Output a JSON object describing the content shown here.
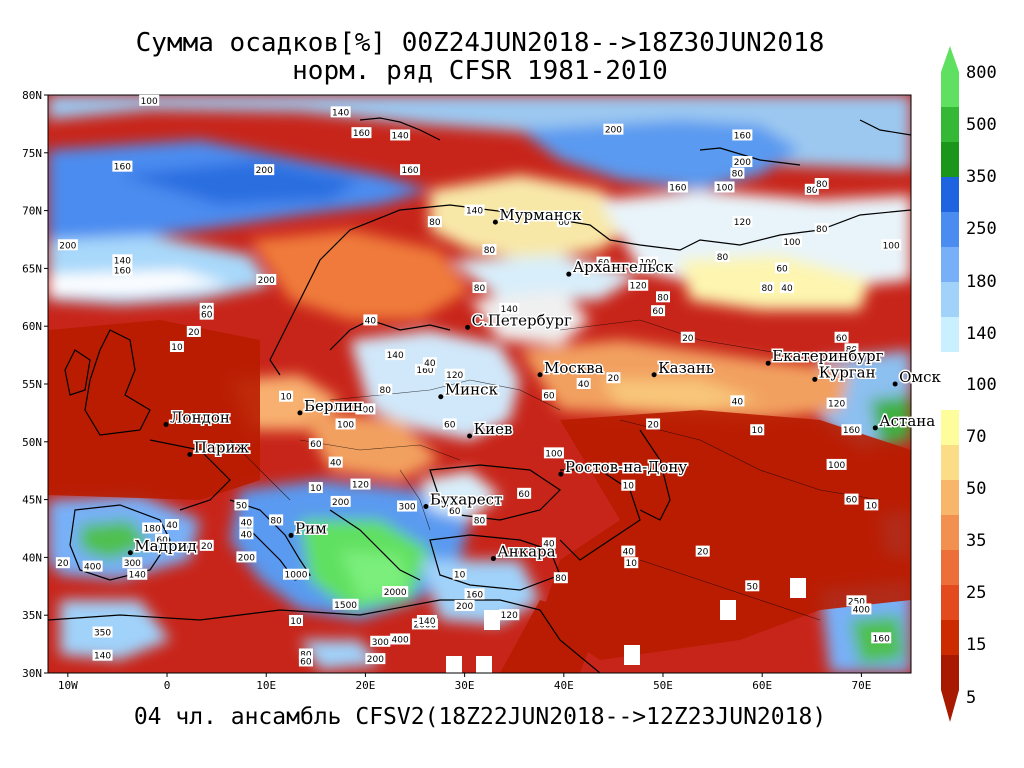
{
  "title_line1": "Сумма осадков[%] 00Z24JUN2018-->18Z30JUN2018",
  "title_line2": "норм. ряд CFSR 1981-2010",
  "footer": "04 чл. ансамбль CFSV2(18Z22JUN2018-->12Z23JUN2018)",
  "lat_ticks": [
    "80N",
    "75N",
    "70N",
    "65N",
    "60N",
    "55N",
    "50N",
    "45N",
    "40N",
    "35N",
    "30N"
  ],
  "lon_ticks": [
    "10W",
    "0",
    "10E",
    "20E",
    "30E",
    "40E",
    "50E",
    "60E",
    "70E"
  ],
  "cities": [
    {
      "name": "Мурманск",
      "lon": 33.1,
      "lat": 69.0
    },
    {
      "name": "Архангельск",
      "lon": 40.5,
      "lat": 64.5
    },
    {
      "name": "С.Петербург",
      "lon": 30.3,
      "lat": 59.9
    },
    {
      "name": "Москва",
      "lon": 37.6,
      "lat": 55.8
    },
    {
      "name": "Казань",
      "lon": 49.1,
      "lat": 55.8
    },
    {
      "name": "Екатеринбург",
      "lon": 60.6,
      "lat": 56.8
    },
    {
      "name": "Курган",
      "lon": 65.3,
      "lat": 55.4
    },
    {
      "name": "Омск",
      "lon": 73.4,
      "lat": 55.0
    },
    {
      "name": "Астана",
      "lon": 71.4,
      "lat": 51.2
    },
    {
      "name": "Минск",
      "lon": 27.6,
      "lat": 53.9
    },
    {
      "name": "Берлин",
      "lon": 13.4,
      "lat": 52.5
    },
    {
      "name": "Лондон",
      "lon": -0.1,
      "lat": 51.5
    },
    {
      "name": "Париж",
      "lon": 2.3,
      "lat": 48.9
    },
    {
      "name": "Киев",
      "lon": 30.5,
      "lat": 50.5
    },
    {
      "name": "Ростов-на-Дону",
      "lon": 39.7,
      "lat": 47.2
    },
    {
      "name": "Бухарест",
      "lon": 26.1,
      "lat": 44.4
    },
    {
      "name": "Рим",
      "lon": 12.5,
      "lat": 41.9
    },
    {
      "name": "Мадрид",
      "lon": -3.7,
      "lat": 40.4
    },
    {
      "name": "Анкара",
      "lon": 32.9,
      "lat": 39.9
    }
  ],
  "contour_labels": [
    {
      "t": "100",
      "lon": -1.8,
      "lat": 79.5
    },
    {
      "t": "200",
      "lon": 9.8,
      "lat": 73.5
    },
    {
      "t": "160",
      "lon": -4.5,
      "lat": 73.8
    },
    {
      "t": "200",
      "lon": -10,
      "lat": 67.0
    },
    {
      "t": "140",
      "lon": -4.5,
      "lat": 65.7
    },
    {
      "t": "160",
      "lon": -4.5,
      "lat": 64.8
    },
    {
      "t": "200",
      "lon": 10,
      "lat": 64.0
    },
    {
      "t": "80",
      "lon": 4,
      "lat": 61.5
    },
    {
      "t": "60",
      "lon": 4,
      "lat": 61.0
    },
    {
      "t": "20",
      "lon": 2.7,
      "lat": 59.5
    },
    {
      "t": "10",
      "lon": 1,
      "lat": 58.2
    },
    {
      "t": "140",
      "lon": 17.5,
      "lat": 78.5
    },
    {
      "t": "160",
      "lon": 19.6,
      "lat": 76.7
    },
    {
      "t": "140",
      "lon": 23.5,
      "lat": 76.5
    },
    {
      "t": "160",
      "lon": 24.5,
      "lat": 73.5
    },
    {
      "t": "200",
      "lon": 45,
      "lat": 77.0
    },
    {
      "t": "160",
      "lon": 58,
      "lat": 76.5
    },
    {
      "t": "200",
      "lon": 58,
      "lat": 74.2
    },
    {
      "t": "80",
      "lon": 57.5,
      "lat": 73.2
    },
    {
      "t": "100",
      "lon": 56.2,
      "lat": 72.0
    },
    {
      "t": "160",
      "lon": 51.5,
      "lat": 72.0
    },
    {
      "t": "80",
      "lon": 65,
      "lat": 71.8
    },
    {
      "t": "80",
      "lon": 66,
      "lat": 72.3
    },
    {
      "t": "100",
      "lon": 73,
      "lat": 67.0
    },
    {
      "t": "120",
      "lon": 58,
      "lat": 69.0
    },
    {
      "t": "80",
      "lon": 66,
      "lat": 68.4
    },
    {
      "t": "100",
      "lon": 63,
      "lat": 67.3
    },
    {
      "t": "80",
      "lon": 56,
      "lat": 66.0
    },
    {
      "t": "60",
      "lon": 62,
      "lat": 65.0
    },
    {
      "t": "80",
      "lon": 60.5,
      "lat": 63.3
    },
    {
      "t": "40",
      "lon": 62.5,
      "lat": 63.3
    },
    {
      "t": "100",
      "lon": 48.5,
      "lat": 65.5
    },
    {
      "t": "120",
      "lon": 47.5,
      "lat": 63.5
    },
    {
      "t": "80",
      "lon": 50,
      "lat": 62.5
    },
    {
      "t": "60",
      "lon": 49.5,
      "lat": 61.3
    },
    {
      "t": "140",
      "lon": 34.5,
      "lat": 61.5
    },
    {
      "t": "80",
      "lon": 31.5,
      "lat": 63.3
    },
    {
      "t": "80",
      "lon": 32.5,
      "lat": 66.6
    },
    {
      "t": "60",
      "lon": 40,
      "lat": 69.0
    },
    {
      "t": "60",
      "lon": 44,
      "lat": 65.5
    },
    {
      "t": "140",
      "lon": 31,
      "lat": 70.0
    },
    {
      "t": "80",
      "lon": 27,
      "lat": 69.0
    },
    {
      "t": "40",
      "lon": 20.5,
      "lat": 60.5
    },
    {
      "t": "20",
      "lon": 52.5,
      "lat": 59.0
    },
    {
      "t": "60",
      "lon": 68,
      "lat": 59.0
    },
    {
      "t": "80",
      "lon": 69,
      "lat": 58.0
    },
    {
      "t": "20",
      "lon": 45,
      "lat": 55.5
    },
    {
      "t": "40",
      "lon": 42,
      "lat": 55.0
    },
    {
      "t": "60",
      "lon": 38.5,
      "lat": 54.0
    },
    {
      "t": "40",
      "lon": 57.5,
      "lat": 53.5
    },
    {
      "t": "120",
      "lon": 67.5,
      "lat": 53.3
    },
    {
      "t": "160",
      "lon": 69,
      "lat": 51.0
    },
    {
      "t": "10",
      "lon": 59.5,
      "lat": 51.0
    },
    {
      "t": "20",
      "lon": 49,
      "lat": 51.5
    },
    {
      "t": "100",
      "lon": 67.5,
      "lat": 48.0
    },
    {
      "t": "60",
      "lon": 69,
      "lat": 45.0
    },
    {
      "t": "10",
      "lon": 71,
      "lat": 44.5
    },
    {
      "t": "140",
      "lon": 23,
      "lat": 57.5
    },
    {
      "t": "160",
      "lon": 26,
      "lat": 56.2
    },
    {
      "t": "120",
      "lon": 29,
      "lat": 55.8
    },
    {
      "t": "40",
      "lon": 26.5,
      "lat": 56.8
    },
    {
      "t": "80",
      "lon": 22,
      "lat": 54.5
    },
    {
      "t": "100",
      "lon": 20,
      "lat": 52.8
    },
    {
      "t": "100",
      "lon": 18,
      "lat": 51.5
    },
    {
      "t": "10",
      "lon": 12,
      "lat": 53.9
    },
    {
      "t": "60",
      "lon": 15,
      "lat": 49.8
    },
    {
      "t": "60",
      "lon": 28.5,
      "lat": 51.5
    },
    {
      "t": "40",
      "lon": 17,
      "lat": 48.2
    },
    {
      "t": "120",
      "lon": 19.5,
      "lat": 46.3
    },
    {
      "t": "200",
      "lon": 17.5,
      "lat": 44.8
    },
    {
      "t": "300",
      "lon": 24.2,
      "lat": 44.4
    },
    {
      "t": "60",
      "lon": 36,
      "lat": 45.5
    },
    {
      "t": "100",
      "lon": 39,
      "lat": 49.0
    },
    {
      "t": "80",
      "lon": 31.5,
      "lat": 43.2
    },
    {
      "t": "60",
      "lon": 29,
      "lat": 44.0
    },
    {
      "t": "10",
      "lon": 15,
      "lat": 46.0
    },
    {
      "t": "50",
      "lon": 7.5,
      "lat": 44.5
    },
    {
      "t": "20",
      "lon": 4,
      "lat": 41.0
    },
    {
      "t": "80",
      "lon": 11,
      "lat": 43.2
    },
    {
      "t": "40",
      "lon": 8,
      "lat": 43.0
    },
    {
      "t": "40",
      "lon": 8,
      "lat": 42.0
    },
    {
      "t": "200",
      "lon": 8,
      "lat": 40.0
    },
    {
      "t": "180",
      "lon": -1.5,
      "lat": 42.5
    },
    {
      "t": "40",
      "lon": 0.5,
      "lat": 42.8
    },
    {
      "t": "60",
      "lon": -0.5,
      "lat": 41.5
    },
    {
      "t": "20",
      "lon": -10.5,
      "lat": 39.5
    },
    {
      "t": "400",
      "lon": -7.5,
      "lat": 39.2
    },
    {
      "t": "300",
      "lon": -3.5,
      "lat": 39.5
    },
    {
      "t": "140",
      "lon": -3,
      "lat": 38.5
    },
    {
      "t": "1000",
      "lon": 13,
      "lat": 38.5
    },
    {
      "t": "1500",
      "lon": 18,
      "lat": 35.9
    },
    {
      "t": "2000",
      "lon": 26,
      "lat": 34.2
    },
    {
      "t": "2000",
      "lon": 23,
      "lat": 37.0
    },
    {
      "t": "400",
      "lon": 23.5,
      "lat": 32.9
    },
    {
      "t": "300",
      "lon": 21.5,
      "lat": 32.7
    },
    {
      "t": "200",
      "lon": 21,
      "lat": 31.2
    },
    {
      "t": "80",
      "lon": 14,
      "lat": 31.6
    },
    {
      "t": "60",
      "lon": 14,
      "lat": 31.0
    },
    {
      "t": "10",
      "lon": 13,
      "lat": 34.5
    },
    {
      "t": "350",
      "lon": -6.5,
      "lat": 33.5
    },
    {
      "t": "140",
      "lon": -6.5,
      "lat": 31.5
    },
    {
      "t": "140",
      "lon": 26.2,
      "lat": 34.5
    },
    {
      "t": "160",
      "lon": 31,
      "lat": 36.8
    },
    {
      "t": "200",
      "lon": 30,
      "lat": 35.8
    },
    {
      "t": "120",
      "lon": 34.5,
      "lat": 35.0
    },
    {
      "t": "10",
      "lon": 29.5,
      "lat": 38.5
    },
    {
      "t": "40",
      "lon": 38.5,
      "lat": 41.2
    },
    {
      "t": "80",
      "lon": 39.7,
      "lat": 38.2
    },
    {
      "t": "40",
      "lon": 46.5,
      "lat": 40.5
    },
    {
      "t": "10",
      "lon": 46.8,
      "lat": 39.5
    },
    {
      "t": "10",
      "lon": 46.5,
      "lat": 46.2
    },
    {
      "t": "250",
      "lon": 69.5,
      "lat": 36.2
    },
    {
      "t": "400",
      "lon": 70,
      "lat": 35.5
    },
    {
      "t": "160",
      "lon": 72,
      "lat": 33.0
    },
    {
      "t": "20",
      "lon": 54,
      "lat": 40.5
    },
    {
      "t": "50",
      "lon": 59,
      "lat": 37.5
    }
  ],
  "legend": {
    "values": [
      "800",
      "500",
      "350",
      "250",
      "180",
      "140",
      "100",
      "70",
      "50",
      "35",
      "25",
      "15",
      "5"
    ],
    "colors_upper": [
      "#60e060",
      "#35b835",
      "#1a961a",
      "#1e64e1",
      "#4b8cf0",
      "#78b0f8",
      "#a0d2fa",
      "#c8f0ff"
    ],
    "colors_lower": [
      "#fdfd9c",
      "#fbdc87",
      "#f8b66a",
      "#f29050",
      "#ec6e38",
      "#e34b1e",
      "#cc2b00",
      "#a81a00"
    ]
  }
}
